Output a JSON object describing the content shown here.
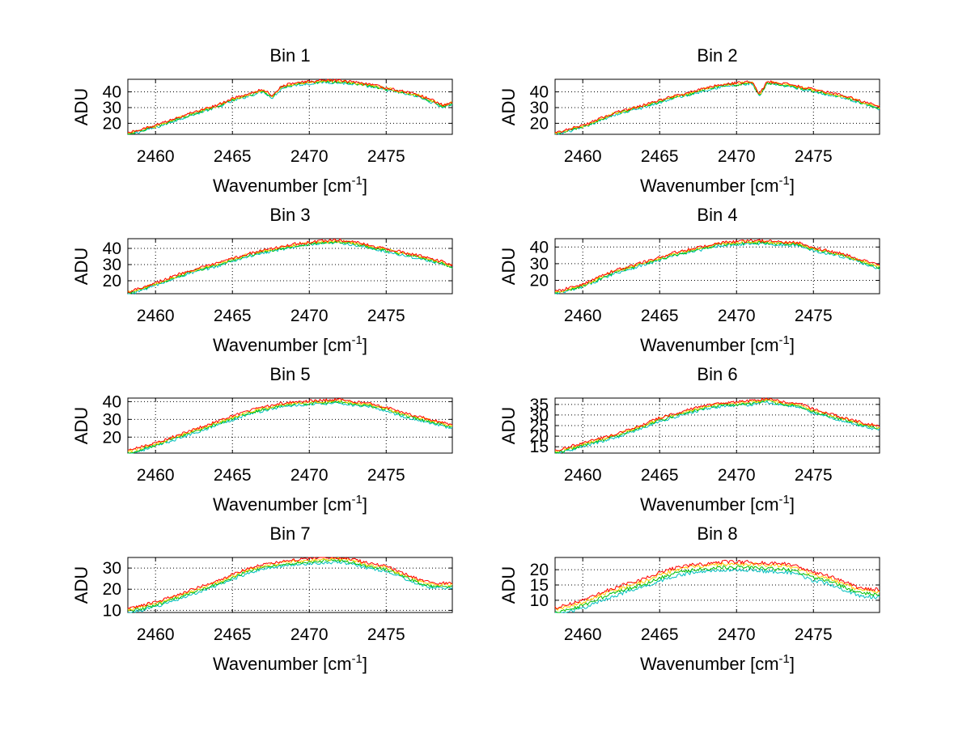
{
  "figure": {
    "xlabel": "Wavenumber [cm",
    "xlabel_sup": "-1",
    "xlabel_end": "]",
    "ylabel": "ADU"
  },
  "series_colors": [
    "#00bfbf",
    "#00bf00",
    "#ffcc00",
    "#ff0000"
  ],
  "chart_data": [
    {
      "type": "line",
      "title": "Bin 1",
      "xlim": [
        2458.2,
        2479.3
      ],
      "ylim": [
        13,
        48
      ],
      "xticks": [
        2460,
        2465,
        2470,
        2475
      ],
      "yticks": [
        20,
        30,
        40
      ],
      "grid": true,
      "anchors": [
        [
          2458.2,
          13.5
        ],
        [
          2460,
          18
        ],
        [
          2462,
          25
        ],
        [
          2464,
          31
        ],
        [
          2465,
          35
        ],
        [
          2466,
          38
        ],
        [
          2467,
          41
        ],
        [
          2467.6,
          37
        ],
        [
          2468.2,
          43
        ],
        [
          2469,
          45
        ],
        [
          2470,
          46
        ],
        [
          2471,
          47
        ],
        [
          2472,
          46.5
        ],
        [
          2473,
          45.5
        ],
        [
          2474,
          44
        ],
        [
          2475,
          42
        ],
        [
          2476,
          40
        ],
        [
          2477,
          38
        ],
        [
          2478,
          34
        ],
        [
          2478.7,
          31
        ],
        [
          2479.3,
          33
        ]
      ],
      "series_offsets": [
        -0.8,
        -0.3,
        0.2,
        0.6
      ],
      "noise": 0.9
    },
    {
      "type": "line",
      "title": "Bin 2",
      "xlim": [
        2458.2,
        2479.3
      ],
      "ylim": [
        13,
        48
      ],
      "xticks": [
        2460,
        2465,
        2470,
        2475
      ],
      "yticks": [
        20,
        30,
        40
      ],
      "grid": true,
      "anchors": [
        [
          2458.2,
          13.5
        ],
        [
          2460,
          18
        ],
        [
          2462,
          26
        ],
        [
          2464,
          31
        ],
        [
          2465,
          34
        ],
        [
          2466,
          37
        ],
        [
          2467,
          39
        ],
        [
          2468,
          42
        ],
        [
          2469,
          44
        ],
        [
          2470,
          45
        ],
        [
          2471,
          46
        ],
        [
          2471.5,
          38
        ],
        [
          2472,
          46
        ],
        [
          2473,
          45
        ],
        [
          2474,
          43
        ],
        [
          2475,
          41
        ],
        [
          2476,
          39
        ],
        [
          2477,
          37
        ],
        [
          2478,
          34
        ],
        [
          2479.3,
          30
        ]
      ],
      "series_offsets": [
        -0.8,
        -0.3,
        0.2,
        0.6
      ],
      "noise": 0.9
    },
    {
      "type": "line",
      "title": "Bin 3",
      "xlim": [
        2458.2,
        2479.3
      ],
      "ylim": [
        12,
        46
      ],
      "xticks": [
        2460,
        2465,
        2470,
        2475
      ],
      "yticks": [
        20,
        30,
        40
      ],
      "grid": true,
      "anchors": [
        [
          2458.2,
          12.5
        ],
        [
          2460,
          18
        ],
        [
          2462,
          25
        ],
        [
          2464,
          30
        ],
        [
          2465,
          33
        ],
        [
          2466,
          36
        ],
        [
          2467,
          38
        ],
        [
          2468,
          40
        ],
        [
          2469,
          42
        ],
        [
          2470,
          43
        ],
        [
          2471,
          44
        ],
        [
          2472,
          44.5
        ],
        [
          2473,
          43
        ],
        [
          2474,
          41
        ],
        [
          2475,
          39
        ],
        [
          2476,
          37
        ],
        [
          2477,
          35
        ],
        [
          2478,
          33
        ],
        [
          2479.3,
          29
        ]
      ],
      "series_offsets": [
        -1.0,
        -0.4,
        0.2,
        0.7
      ],
      "noise": 0.9
    },
    {
      "type": "line",
      "title": "Bin 4",
      "xlim": [
        2458.2,
        2479.3
      ],
      "ylim": [
        12,
        45
      ],
      "xticks": [
        2460,
        2465,
        2470,
        2475
      ],
      "yticks": [
        20,
        30,
        40
      ],
      "grid": true,
      "anchors": [
        [
          2458.2,
          12.5
        ],
        [
          2460,
          17
        ],
        [
          2462,
          25
        ],
        [
          2463.5,
          29
        ],
        [
          2465,
          33
        ],
        [
          2466,
          36
        ],
        [
          2467,
          38
        ],
        [
          2468,
          40
        ],
        [
          2469,
          42
        ],
        [
          2470,
          42.5
        ],
        [
          2471,
          43
        ],
        [
          2472,
          43
        ],
        [
          2473,
          42
        ],
        [
          2474,
          42
        ],
        [
          2475,
          39
        ],
        [
          2476,
          37
        ],
        [
          2477,
          35
        ],
        [
          2478,
          32
        ],
        [
          2479.3,
          28
        ]
      ],
      "series_offsets": [
        -1.0,
        -0.4,
        0.2,
        0.7
      ],
      "noise": 0.9
    },
    {
      "type": "line",
      "title": "Bin 5",
      "xlim": [
        2458.2,
        2479.3
      ],
      "ylim": [
        11,
        42
      ],
      "xticks": [
        2460,
        2465,
        2470,
        2475
      ],
      "yticks": [
        20,
        30,
        40
      ],
      "grid": true,
      "anchors": [
        [
          2458.2,
          11.5
        ],
        [
          2460,
          16
        ],
        [
          2462,
          22
        ],
        [
          2464,
          28
        ],
        [
          2465,
          31
        ],
        [
          2466,
          34
        ],
        [
          2467,
          36
        ],
        [
          2468,
          38
        ],
        [
          2469,
          39
        ],
        [
          2470,
          39.5
        ],
        [
          2471,
          40
        ],
        [
          2472,
          40.5
        ],
        [
          2473,
          39
        ],
        [
          2474,
          38
        ],
        [
          2475,
          36
        ],
        [
          2476,
          33
        ],
        [
          2477,
          31
        ],
        [
          2478,
          29
        ],
        [
          2479.3,
          26
        ]
      ],
      "series_offsets": [
        -1.2,
        -0.5,
        0.2,
        0.8
      ],
      "noise": 0.8
    },
    {
      "type": "line",
      "title": "Bin 6",
      "xlim": [
        2458.2,
        2479.3
      ],
      "ylim": [
        12,
        38
      ],
      "xticks": [
        2460,
        2465,
        2470,
        2475
      ],
      "yticks": [
        15,
        20,
        25,
        30,
        35
      ],
      "grid": true,
      "anchors": [
        [
          2458.2,
          12.5
        ],
        [
          2460,
          16
        ],
        [
          2462,
          20
        ],
        [
          2464,
          25
        ],
        [
          2465,
          28
        ],
        [
          2466,
          30
        ],
        [
          2467,
          32
        ],
        [
          2468,
          34
        ],
        [
          2469,
          35
        ],
        [
          2470,
          35.5
        ],
        [
          2471,
          36
        ],
        [
          2472,
          37
        ],
        [
          2473,
          35.5
        ],
        [
          2474,
          35
        ],
        [
          2475,
          32
        ],
        [
          2476,
          30
        ],
        [
          2477,
          28
        ],
        [
          2478,
          26
        ],
        [
          2479.3,
          24
        ]
      ],
      "series_offsets": [
        -1.0,
        -0.4,
        0.2,
        0.7
      ],
      "noise": 0.7
    },
    {
      "type": "line",
      "title": "Bin 7",
      "xlim": [
        2458.2,
        2479.3
      ],
      "ylim": [
        9,
        35
      ],
      "xticks": [
        2460,
        2465,
        2470,
        2475
      ],
      "yticks": [
        10,
        20,
        30
      ],
      "grid": true,
      "anchors": [
        [
          2458.2,
          10
        ],
        [
          2460,
          13
        ],
        [
          2462,
          18
        ],
        [
          2464,
          23
        ],
        [
          2465,
          26
        ],
        [
          2466,
          29
        ],
        [
          2467,
          31
        ],
        [
          2468,
          32
        ],
        [
          2469,
          33
        ],
        [
          2470,
          33.5
        ],
        [
          2471,
          34
        ],
        [
          2472,
          34
        ],
        [
          2473,
          33
        ],
        [
          2474,
          31
        ],
        [
          2475,
          30
        ],
        [
          2476,
          27
        ],
        [
          2477,
          24
        ],
        [
          2478,
          22
        ],
        [
          2479.3,
          22
        ]
      ],
      "series_offsets": [
        -1.4,
        -0.6,
        0.2,
        0.9
      ],
      "noise": 0.7
    },
    {
      "type": "line",
      "title": "Bin 8",
      "xlim": [
        2458.2,
        2479.3
      ],
      "ylim": [
        6,
        24
      ],
      "xticks": [
        2460,
        2465,
        2470,
        2475
      ],
      "yticks": [
        10,
        15,
        20
      ],
      "grid": true,
      "anchors": [
        [
          2458.2,
          6.5
        ],
        [
          2460,
          9
        ],
        [
          2462,
          13
        ],
        [
          2464,
          16
        ],
        [
          2465,
          18
        ],
        [
          2466,
          19.5
        ],
        [
          2467,
          20.5
        ],
        [
          2468,
          21
        ],
        [
          2469,
          21.5
        ],
        [
          2470,
          21.5
        ],
        [
          2471,
          21.5
        ],
        [
          2472,
          21
        ],
        [
          2473,
          21
        ],
        [
          2474,
          20
        ],
        [
          2475,
          18
        ],
        [
          2476,
          17
        ],
        [
          2477,
          15
        ],
        [
          2478,
          13
        ],
        [
          2479.3,
          12.5
        ]
      ],
      "series_offsets": [
        -1.6,
        -0.7,
        0.3,
        1.0
      ],
      "noise": 0.6
    }
  ]
}
